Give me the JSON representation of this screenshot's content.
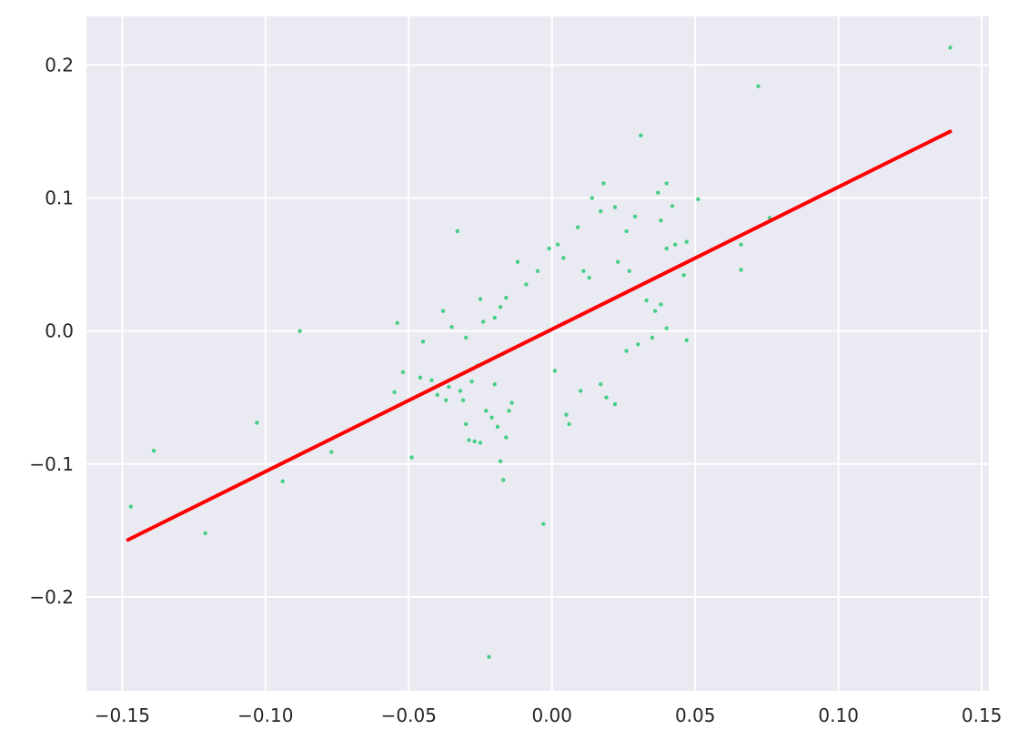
{
  "chart_data": {
    "type": "scatter",
    "title": "",
    "xlabel": "",
    "ylabel": "",
    "xlim": [
      -0.1625,
      0.1525
    ],
    "ylim": [
      -0.2705,
      0.2365
    ],
    "grid": true,
    "background_color": "#eaeaf2",
    "grid_color": "#ffffff",
    "x_ticks": [
      -0.15,
      -0.1,
      -0.05,
      0.0,
      0.05,
      0.1,
      0.15
    ],
    "x_tick_labels": [
      "−0.15",
      "−0.10",
      "−0.05",
      "0.00",
      "0.05",
      "0.10",
      "0.15"
    ],
    "y_ticks": [
      -0.2,
      -0.1,
      0.0,
      0.1,
      0.2
    ],
    "y_tick_labels": [
      "−0.2",
      "−0.1",
      "0.0",
      "0.1",
      "0.2"
    ],
    "series": [
      {
        "kind": "scatter",
        "color": "#46cf87",
        "points": [
          [
            -0.147,
            -0.132
          ],
          [
            -0.139,
            -0.09
          ],
          [
            -0.121,
            -0.152
          ],
          [
            -0.103,
            -0.069
          ],
          [
            -0.094,
            -0.113
          ],
          [
            -0.088,
            0.0
          ],
          [
            -0.077,
            -0.091
          ],
          [
            -0.055,
            -0.046
          ],
          [
            -0.054,
            0.006
          ],
          [
            -0.052,
            -0.031
          ],
          [
            -0.049,
            -0.095
          ],
          [
            -0.046,
            -0.035
          ],
          [
            -0.045,
            -0.008
          ],
          [
            -0.042,
            -0.037
          ],
          [
            -0.04,
            -0.048
          ],
          [
            -0.038,
            0.015
          ],
          [
            -0.037,
            -0.052
          ],
          [
            -0.036,
            -0.042
          ],
          [
            -0.035,
            0.003
          ],
          [
            -0.033,
            0.075
          ],
          [
            -0.032,
            -0.045
          ],
          [
            -0.031,
            -0.052
          ],
          [
            -0.03,
            -0.07
          ],
          [
            -0.029,
            -0.082
          ],
          [
            -0.028,
            -0.038
          ],
          [
            -0.027,
            -0.083
          ],
          [
            -0.026,
            -0.026
          ],
          [
            -0.025,
            0.024
          ],
          [
            -0.025,
            -0.084
          ],
          [
            -0.023,
            -0.06
          ],
          [
            -0.022,
            -0.245
          ],
          [
            -0.021,
            -0.065
          ],
          [
            -0.02,
            -0.04
          ],
          [
            -0.019,
            -0.072
          ],
          [
            -0.018,
            -0.098
          ],
          [
            -0.017,
            -0.112
          ],
          [
            -0.016,
            -0.08
          ],
          [
            -0.015,
            -0.06
          ],
          [
            -0.014,
            -0.054
          ],
          [
            -0.003,
            -0.145
          ],
          [
            0.005,
            -0.063
          ],
          [
            0.018,
            0.111
          ],
          [
            0.031,
            0.147
          ],
          [
            0.037,
            0.104
          ],
          [
            0.04,
            0.111
          ],
          [
            0.042,
            0.094
          ],
          [
            0.046,
            0.042
          ],
          [
            0.051,
            0.099
          ],
          [
            0.066,
            0.065
          ],
          [
            0.066,
            0.046
          ],
          [
            0.072,
            0.184
          ],
          [
            0.076,
            0.085
          ],
          [
            0.139,
            0.213
          ],
          [
            0.022,
            0.093
          ],
          [
            0.014,
            0.1
          ],
          [
            0.009,
            0.078
          ],
          [
            0.026,
            0.075
          ],
          [
            0.029,
            0.086
          ],
          [
            0.017,
            0.09
          ],
          [
            0.043,
            0.065
          ],
          [
            0.047,
            0.067
          ],
          [
            0.038,
            0.083
          ],
          [
            0.04,
            0.062
          ],
          [
            -0.012,
            0.052
          ],
          [
            0.03,
            -0.01
          ],
          [
            0.026,
            -0.015
          ],
          [
            0.035,
            -0.005
          ],
          [
            0.04,
            0.002
          ],
          [
            0.047,
            -0.007
          ],
          [
            0.033,
            0.023
          ],
          [
            0.038,
            0.02
          ],
          [
            0.036,
            0.015
          ],
          [
            0.022,
            -0.055
          ],
          [
            0.019,
            -0.05
          ],
          [
            0.017,
            -0.04
          ],
          [
            0.006,
            -0.07
          ],
          [
            -0.018,
            0.018
          ],
          [
            -0.02,
            0.01
          ],
          [
            -0.024,
            0.007
          ],
          [
            -0.03,
            -0.005
          ],
          [
            0.01,
            -0.045
          ],
          [
            0.001,
            -0.03
          ],
          [
            0.013,
            0.04
          ],
          [
            0.011,
            0.045
          ],
          [
            0.027,
            0.045
          ],
          [
            0.023,
            0.052
          ],
          [
            -0.009,
            0.035
          ],
          [
            -0.005,
            0.045
          ],
          [
            0.004,
            0.055
          ],
          [
            -0.001,
            0.062
          ],
          [
            0.002,
            0.065
          ],
          [
            -0.016,
            0.025
          ]
        ]
      },
      {
        "kind": "line",
        "color": "#ff0000",
        "points": [
          [
            -0.148,
            -0.157
          ],
          [
            0.139,
            0.15
          ]
        ]
      }
    ]
  }
}
